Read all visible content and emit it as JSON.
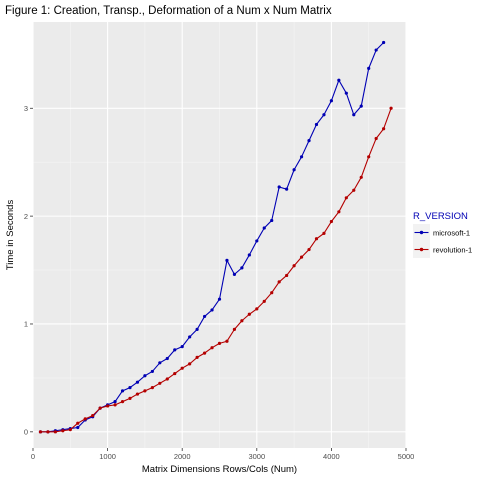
{
  "chart_data": {
    "type": "line",
    "title": "Figure 1: Creation, Transp., Deformation of a Num x Num Matrix",
    "xlabel": "Matrix Dimensions Rows/Cols (Num)",
    "ylabel": "Time in Seconds",
    "xlim": [
      0,
      5000
    ],
    "ylim": [
      -0.15,
      3.8
    ],
    "xticks": [
      0,
      1000,
      2000,
      3000,
      4000,
      5000
    ],
    "yticks": [
      0,
      1,
      2,
      3
    ],
    "grid": true,
    "legend": {
      "title": "R_VERSION",
      "position": "right"
    },
    "series": [
      {
        "name": "microsoft-1",
        "color": "#0000b4",
        "x": [
          100,
          200,
          300,
          400,
          500,
          600,
          700,
          800,
          900,
          1000,
          1100,
          1200,
          1300,
          1400,
          1500,
          1600,
          1700,
          1800,
          1900,
          2000,
          2100,
          2200,
          2300,
          2400,
          2500,
          2600,
          2700,
          2800,
          2900,
          3000,
          3100,
          3200,
          3300,
          3400,
          3500,
          3600,
          3700,
          3800,
          3900,
          4000,
          4100,
          4200,
          4300,
          4400,
          4500,
          4600,
          4700
        ],
        "y": [
          0.0,
          0.0,
          0.01,
          0.02,
          0.03,
          0.04,
          0.11,
          0.14,
          0.22,
          0.25,
          0.28,
          0.38,
          0.41,
          0.46,
          0.52,
          0.56,
          0.64,
          0.68,
          0.76,
          0.79,
          0.88,
          0.95,
          1.07,
          1.13,
          1.23,
          1.59,
          1.46,
          1.52,
          1.64,
          1.77,
          1.89,
          1.96,
          2.27,
          2.25,
          2.43,
          2.55,
          2.7,
          2.85,
          2.94,
          3.07,
          3.26,
          3.14,
          2.94,
          3.02,
          3.37,
          3.54,
          3.61
        ]
      },
      {
        "name": "revolution-1",
        "color": "#b40000",
        "x": [
          100,
          200,
          300,
          400,
          500,
          600,
          700,
          800,
          900,
          1000,
          1100,
          1200,
          1300,
          1400,
          1500,
          1600,
          1700,
          1800,
          1900,
          2000,
          2100,
          2200,
          2300,
          2400,
          2500,
          2600,
          2700,
          2800,
          2900,
          3000,
          3100,
          3200,
          3300,
          3400,
          3500,
          3600,
          3700,
          3800,
          3900,
          4000,
          4100,
          4200,
          4300,
          4400,
          4500,
          4600,
          4700,
          4800
        ],
        "y": [
          0.0,
          0.0,
          0.0,
          0.01,
          0.02,
          0.08,
          0.12,
          0.15,
          0.22,
          0.24,
          0.25,
          0.28,
          0.31,
          0.35,
          0.38,
          0.41,
          0.45,
          0.49,
          0.54,
          0.59,
          0.63,
          0.69,
          0.73,
          0.78,
          0.82,
          0.84,
          0.95,
          1.03,
          1.09,
          1.14,
          1.21,
          1.29,
          1.39,
          1.45,
          1.54,
          1.62,
          1.69,
          1.79,
          1.84,
          1.95,
          2.04,
          2.17,
          2.24,
          2.36,
          2.55,
          2.72,
          2.81,
          3.0
        ]
      }
    ]
  }
}
